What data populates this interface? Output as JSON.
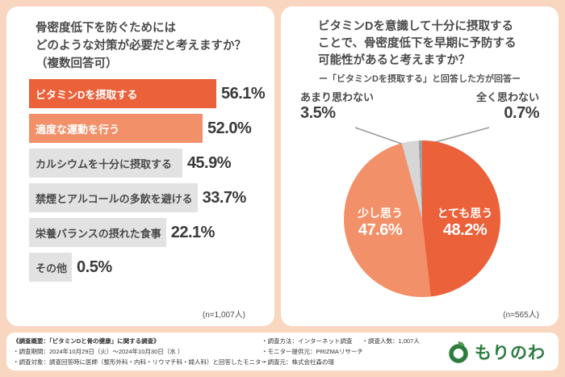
{
  "colors": {
    "background": "#f8d6bf",
    "accent_dark": "#ea613a",
    "accent_light": "#f29169",
    "bar_gray": "#e2e2e2",
    "text_dark": "#4a4a4a",
    "logo_green": "#2c7c40"
  },
  "chart_data": [
    {
      "type": "bar",
      "orientation": "horizontal",
      "title": "骨密度低下を防ぐためにはどのような対策が必要だと考えますか？（複数回答可）",
      "title_lines": [
        "骨密度低下を防ぐためには",
        "どのような対策が必要だと考えますか？",
        "（複数回答可）"
      ],
      "categories": [
        "ビタミンDを摂取する",
        "適度な運動を行う",
        "カルシウムを十分に摂取する",
        "禁煙とアルコールの多飲を避ける",
        "栄養バランスの摂れた食事",
        "その他"
      ],
      "values": [
        56.1,
        52.0,
        45.9,
        33.7,
        22.1,
        0.5
      ],
      "value_labels": [
        "56.1%",
        "52.0%",
        "45.9%",
        "33.7%",
        "22.1%",
        "0.5%"
      ],
      "colors": [
        "#ea613a",
        "#f29169",
        "#e2e2e2",
        "#e2e2e2",
        "#e2e2e2",
        "#e2e2e2"
      ],
      "label_colors": [
        "#ffffff",
        "#ffffff",
        "#4a4a4a",
        "#4a4a4a",
        "#4a4a4a",
        "#4a4a4a"
      ],
      "xlim": [
        0,
        60
      ],
      "n": "(n=1,007人)"
    },
    {
      "type": "pie",
      "title": "ビタミンDを意識して十分に摂取することで、骨密度低下を早期に予防する可能性があると考えますか？",
      "title_lines": [
        "ビタミンDを意識して十分に摂取する",
        "ことで、骨密度低下を早期に予防する",
        "可能性があると考えますか？"
      ],
      "subtitle": "ー「ビタミンDを摂取する」と回答した方が回答ー",
      "labels": [
        "とても思う",
        "少し思う",
        "あまり思わない",
        "全く思わない"
      ],
      "values": [
        48.2,
        47.6,
        3.5,
        0.7
      ],
      "value_labels": [
        "48.2%",
        "47.6%",
        "3.5%",
        "0.7%"
      ],
      "colors": [
        "#ea613a",
        "#f29169",
        "#d6d6d6",
        "#a0a0a0"
      ],
      "start_angle_deg": 0,
      "direction": "clockwise",
      "n": "(n=565人)"
    }
  ],
  "footer": {
    "heading": "《調査概要：「ビタミンDと骨の健康」に関する調査》",
    "left_lines": [
      "・調査期間：2024年10月29日（火）～2024年10月30日（水 ）",
      "・調査対象：調査回答時に医師（整形外科・内科・リウマチ科・婦人科）と回答したモニター"
    ],
    "right_lines": [
      "・調査方法：インターネット調査",
      "・調査人数：1,007人",
      "・モニター提供元：PRIZMAリサーチ",
      "・調査元：株式会社森の環"
    ]
  },
  "logo": {
    "text": "もりのわ"
  }
}
